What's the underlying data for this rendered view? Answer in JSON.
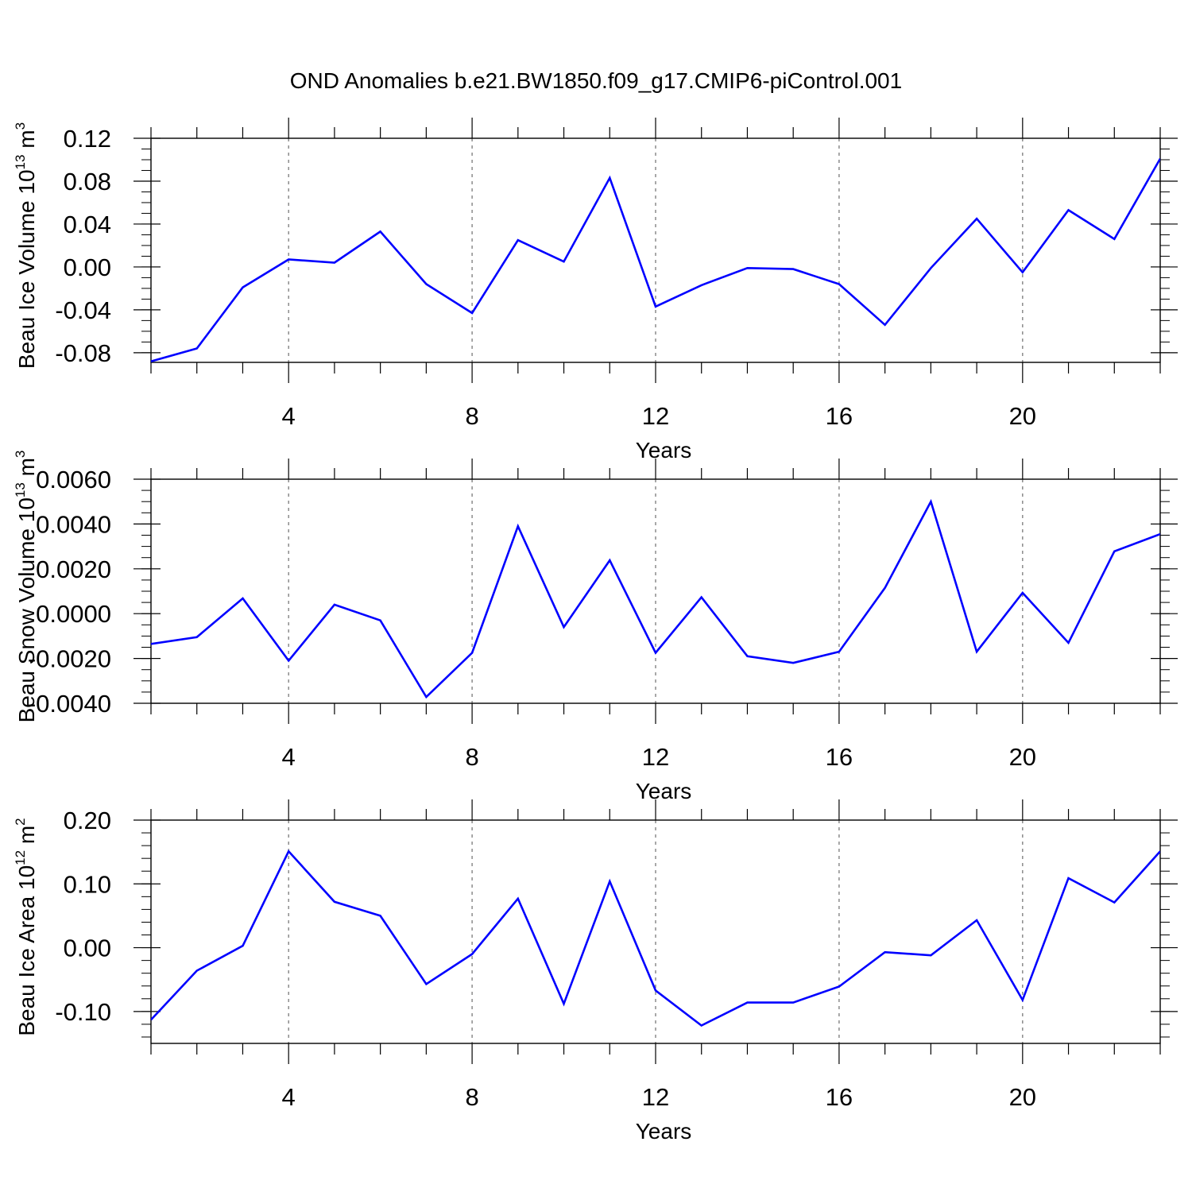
{
  "title": "OND Anomalies b.e21.BW1850.f09_g17.CMIP6-piControl.001",
  "colors": {
    "line": "#0000ff",
    "axes": "#000000",
    "gridline": "#7a7a7a"
  },
  "chart_data": [
    {
      "type": "line",
      "title": "OND Anomalies b.e21.BW1850.f09_g17.CMIP6-piControl.001",
      "xlabel": "Years",
      "ylabel": "Beau Ice Volume 10",
      "ylabel_exponent": "13",
      "ylabel_unit": "m",
      "ylabel_unit_exponent": "3",
      "xlim": [
        1,
        23
      ],
      "ylim": [
        -0.089,
        0.12
      ],
      "x_ticks": [
        4,
        8,
        12,
        16,
        20
      ],
      "y_ticks": [
        -0.08,
        -0.04,
        0.0,
        0.04,
        0.08,
        0.12
      ],
      "y_tick_labels": [
        "-0.08",
        "-0.04",
        "0.00",
        "0.04",
        "0.08",
        "0.12"
      ],
      "y_minor_step": 0.01,
      "grid": "vertical dashed at major x ticks",
      "x": [
        1,
        2,
        3,
        4,
        5,
        6,
        7,
        8,
        9,
        10,
        11,
        12,
        13,
        14,
        15,
        16,
        17,
        18,
        19,
        20,
        21,
        22,
        23
      ],
      "series": [
        {
          "values": [
            -0.088,
            -0.076,
            -0.019,
            0.007,
            0.004,
            0.033,
            -0.016,
            -0.043,
            0.025,
            0.005,
            0.083,
            -0.037,
            -0.017,
            -0.001,
            -0.002,
            -0.016,
            -0.054,
            -0.001,
            0.045,
            -0.005,
            0.053,
            0.026,
            0.101
          ]
        }
      ]
    },
    {
      "type": "line",
      "xlabel": "Years",
      "ylabel": "Beau Snow Volume 10",
      "ylabel_exponent": "13",
      "ylabel_unit": "m",
      "ylabel_unit_exponent": "3",
      "xlim": [
        1,
        23
      ],
      "ylim": [
        -0.004,
        0.006
      ],
      "x_ticks": [
        4,
        8,
        12,
        16,
        20
      ],
      "y_ticks": [
        -0.004,
        -0.002,
        0.0,
        0.002,
        0.004,
        0.006
      ],
      "y_tick_labels": [
        "-0.0040",
        "-0.0020",
        "0.0000",
        "0.0020",
        "0.0040",
        "0.0060"
      ],
      "y_minor_step": 0.0005,
      "grid": "vertical dashed at major x ticks",
      "x": [
        1,
        2,
        3,
        4,
        5,
        6,
        7,
        8,
        9,
        10,
        11,
        12,
        13,
        14,
        15,
        16,
        17,
        18,
        19,
        20,
        21,
        22,
        23
      ],
      "series": [
        {
          "values": [
            -0.00135,
            -0.00105,
            0.00068,
            -0.0021,
            0.0004,
            -0.0003,
            -0.00372,
            -0.00175,
            0.0039,
            -0.0006,
            0.00238,
            -0.00175,
            0.00073,
            -0.0019,
            -0.0022,
            -0.0017,
            0.00115,
            0.005,
            -0.0017,
            0.00093,
            -0.0013,
            0.00278,
            0.00355
          ]
        }
      ]
    },
    {
      "type": "line",
      "xlabel": "Years",
      "ylabel": "Beau Ice Area 10",
      "ylabel_exponent": "12",
      "ylabel_unit": "m",
      "ylabel_unit_exponent": "2",
      "xlim": [
        1,
        23
      ],
      "ylim": [
        -0.15,
        0.2
      ],
      "x_ticks": [
        4,
        8,
        12,
        16,
        20
      ],
      "y_ticks": [
        -0.1,
        0.0,
        0.1,
        0.2
      ],
      "y_tick_labels": [
        "-0.10",
        "0.00",
        "0.10",
        "0.20"
      ],
      "y_minor_step": 0.02,
      "grid": "vertical dashed at major x ticks",
      "x": [
        1,
        2,
        3,
        4,
        5,
        6,
        7,
        8,
        9,
        10,
        11,
        12,
        13,
        14,
        15,
        16,
        17,
        18,
        19,
        20,
        21,
        22,
        23
      ],
      "series": [
        {
          "values": [
            -0.113,
            -0.036,
            0.003,
            0.151,
            0.072,
            0.05,
            -0.057,
            -0.01,
            0.077,
            -0.088,
            0.104,
            -0.067,
            -0.122,
            -0.086,
            -0.086,
            -0.061,
            -0.007,
            -0.012,
            0.043,
            -0.082,
            0.109,
            0.071,
            0.151
          ]
        }
      ]
    }
  ]
}
